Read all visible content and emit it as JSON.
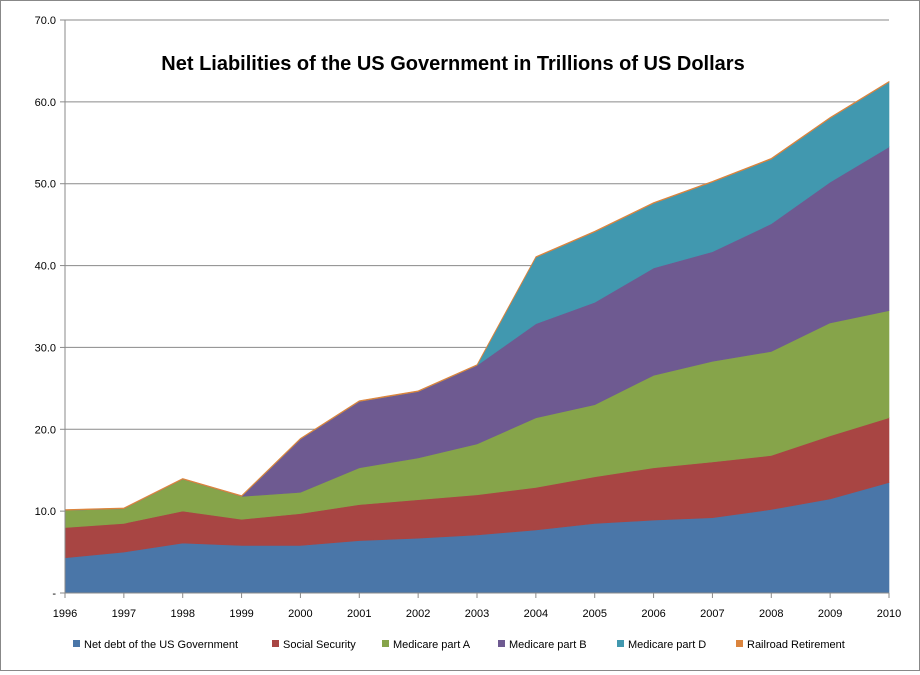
{
  "chart_data": {
    "type": "area",
    "stacked": true,
    "title": "Net Liabilities of the US Government in Trillions of US Dollars",
    "xlabel": "",
    "ylabel": "",
    "x": [
      "1996",
      "1997",
      "1998",
      "1999",
      "2000",
      "2001",
      "2002",
      "2003",
      "2004",
      "2005",
      "2006",
      "2007",
      "2008",
      "2009",
      "2010"
    ],
    "ylim": [
      0,
      70
    ],
    "y_ticks": [
      "-",
      "10.0",
      "20.0",
      "30.0",
      "40.0",
      "50.0",
      "60.0",
      "70.0"
    ],
    "grid": true,
    "legend_position": "bottom",
    "series": [
      {
        "name": "Net debt of the US Government",
        "color": "#4A76A8",
        "values": [
          4.3,
          5.0,
          6.1,
          5.8,
          5.8,
          6.4,
          6.7,
          7.1,
          7.7,
          8.5,
          8.9,
          9.2,
          10.2,
          11.5,
          13.5
        ]
      },
      {
        "name": "Social Security",
        "color": "#A84543",
        "values": [
          3.7,
          3.5,
          3.9,
          3.2,
          3.9,
          4.4,
          4.7,
          4.9,
          5.2,
          5.7,
          6.4,
          6.8,
          6.6,
          7.7,
          7.9
        ]
      },
      {
        "name": "Medicare part A",
        "color": "#86A44A",
        "values": [
          2.1,
          1.8,
          3.9,
          2.8,
          2.6,
          4.5,
          5.1,
          6.2,
          8.5,
          8.8,
          11.3,
          12.3,
          12.7,
          13.8,
          13.1
        ]
      },
      {
        "name": "Medicare part B",
        "color": "#6E5A91",
        "values": [
          0,
          0,
          0,
          0,
          6.5,
          8.1,
          8.1,
          9.6,
          11.5,
          12.5,
          13.1,
          13.4,
          15.6,
          17.2,
          20.0
        ]
      },
      {
        "name": "Medicare part D",
        "color": "#4198AF",
        "values": [
          0,
          0,
          0,
          0,
          0,
          0,
          0,
          0,
          8.1,
          8.6,
          7.9,
          8.5,
          7.9,
          7.8,
          7.9
        ]
      },
      {
        "name": "Railroad Retirement",
        "color": "#DB843D",
        "values": [
          0.1,
          0.1,
          0.1,
          0.1,
          0.1,
          0.1,
          0.1,
          0.1,
          0.1,
          0.1,
          0.1,
          0.1,
          0.1,
          0.1,
          0.1
        ]
      }
    ]
  }
}
